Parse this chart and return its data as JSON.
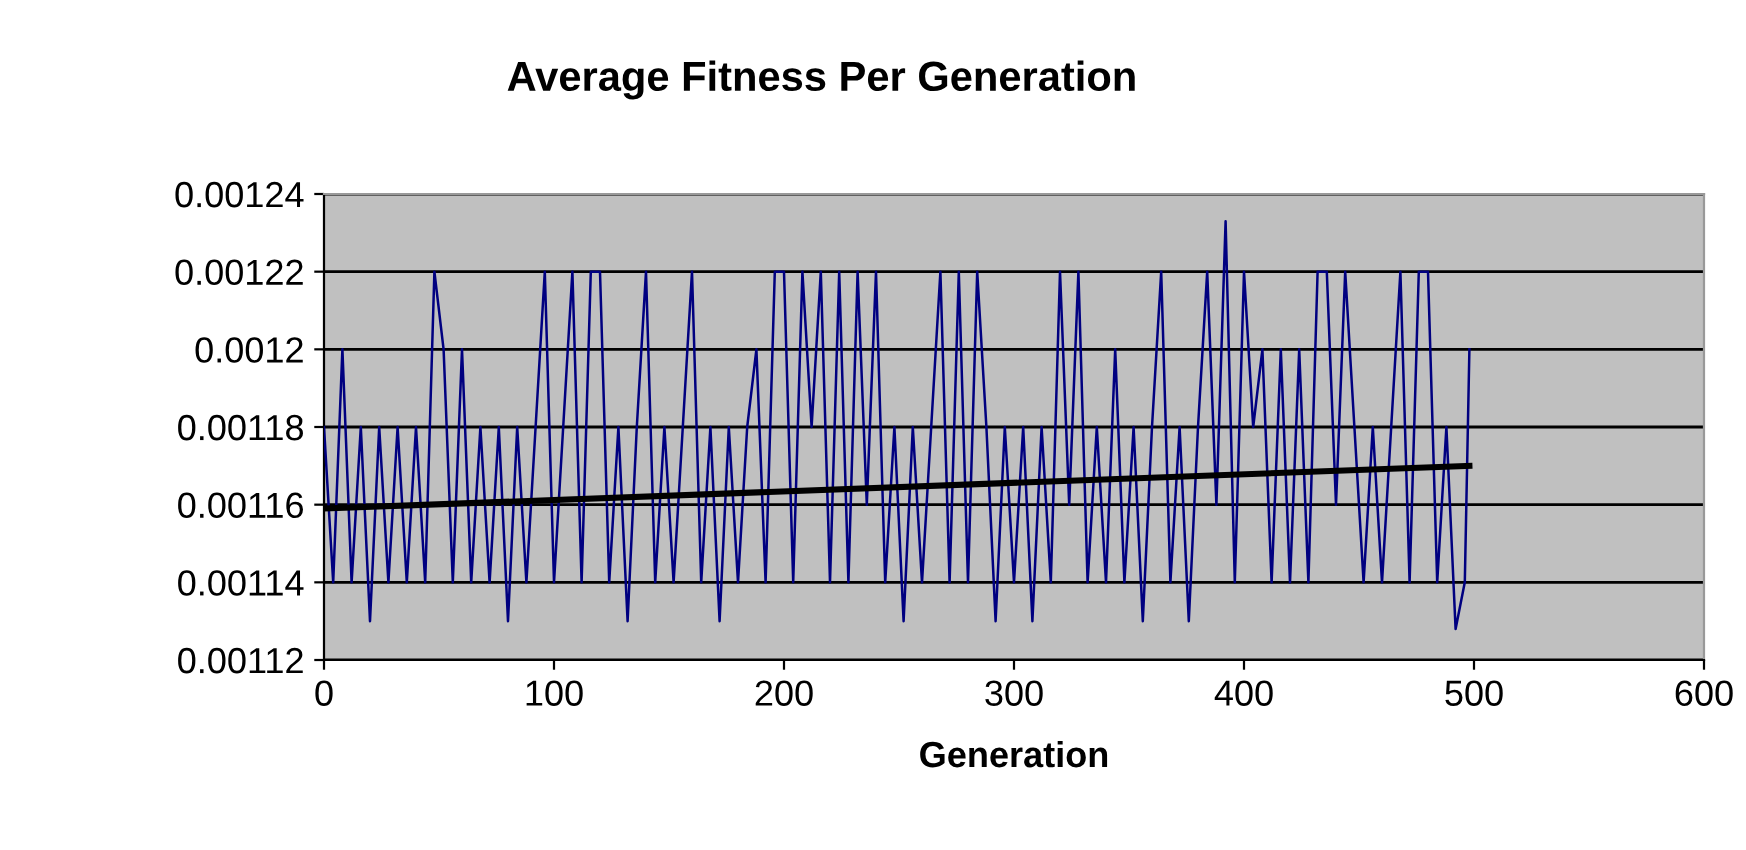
{
  "chart_data": {
    "type": "line",
    "title": "Average Fitness Per Generation",
    "xlabel": "Generation",
    "series": [
      {
        "color": "#000080",
        "x": [
          0,
          4,
          8,
          12,
          16,
          20,
          24,
          28,
          32,
          36,
          40,
          44,
          48,
          52,
          56,
          60,
          64,
          68,
          72,
          76,
          80,
          84,
          88,
          92,
          96,
          100,
          104,
          108,
          112,
          116,
          120,
          124,
          128,
          132,
          136,
          140,
          144,
          148,
          152,
          156,
          160,
          164,
          168,
          172,
          176,
          180,
          184,
          188,
          192,
          196,
          200,
          204,
          208,
          212,
          216,
          220,
          224,
          228,
          232,
          236,
          240,
          244,
          248,
          252,
          256,
          260,
          264,
          268,
          272,
          276,
          280,
          284,
          288,
          292,
          296,
          300,
          304,
          308,
          312,
          316,
          320,
          324,
          328,
          332,
          336,
          340,
          344,
          348,
          352,
          356,
          360,
          364,
          368,
          372,
          376,
          380,
          384,
          388,
          392,
          396,
          400,
          404,
          408,
          412,
          416,
          420,
          424,
          428,
          432,
          436,
          440,
          444,
          448,
          452,
          456,
          460,
          464,
          468,
          472,
          476,
          480,
          484,
          488,
          492,
          496,
          498
        ],
        "values": [
          0.00118,
          0.00114,
          0.0012,
          0.00114,
          0.00118,
          0.00113,
          0.00118,
          0.00114,
          0.00118,
          0.00114,
          0.00118,
          0.00114,
          0.00122,
          0.0012,
          0.00114,
          0.0012,
          0.00114,
          0.00118,
          0.00114,
          0.00118,
          0.00113,
          0.00118,
          0.00114,
          0.00118,
          0.00122,
          0.00114,
          0.00118,
          0.00122,
          0.00114,
          0.00122,
          0.00122,
          0.00114,
          0.00118,
          0.00113,
          0.00118,
          0.00122,
          0.00114,
          0.00118,
          0.00114,
          0.00118,
          0.00122,
          0.00114,
          0.00118,
          0.00113,
          0.00118,
          0.00114,
          0.00118,
          0.0012,
          0.00114,
          0.00122,
          0.00122,
          0.00114,
          0.00122,
          0.00118,
          0.00122,
          0.00114,
          0.00122,
          0.00114,
          0.00122,
          0.00116,
          0.00122,
          0.00114,
          0.00118,
          0.00113,
          0.00118,
          0.00114,
          0.00118,
          0.00122,
          0.00114,
          0.00122,
          0.00114,
          0.00122,
          0.00118,
          0.00113,
          0.00118,
          0.00114,
          0.00118,
          0.00113,
          0.00118,
          0.00114,
          0.00122,
          0.00116,
          0.00122,
          0.00114,
          0.00118,
          0.00114,
          0.0012,
          0.00114,
          0.00118,
          0.00113,
          0.00118,
          0.00122,
          0.00114,
          0.00118,
          0.00113,
          0.00118,
          0.00122,
          0.00116,
          0.001233,
          0.00114,
          0.00122,
          0.00118,
          0.0012,
          0.00114,
          0.0012,
          0.00114,
          0.0012,
          0.00114,
          0.00122,
          0.00122,
          0.00116,
          0.00122,
          0.00118,
          0.00114,
          0.00118,
          0.00114,
          0.00118,
          0.00122,
          0.00114,
          0.00122,
          0.00122,
          0.00114,
          0.00118,
          0.001128,
          0.00114,
          0.0012
        ]
      },
      {
        "color": "#000000",
        "x": [
          0,
          498
        ],
        "values": [
          0.001159,
          0.00117
        ]
      }
    ],
    "xlim": [
      0,
      600
    ],
    "xticks": [
      0,
      100,
      200,
      300,
      400,
      500,
      600
    ],
    "ylim": [
      0.00112,
      0.00124
    ],
    "yticks": [
      0.00112,
      0.00114,
      0.00116,
      0.00118,
      0.0012,
      0.00122,
      0.00124
    ],
    "grid": "y"
  }
}
